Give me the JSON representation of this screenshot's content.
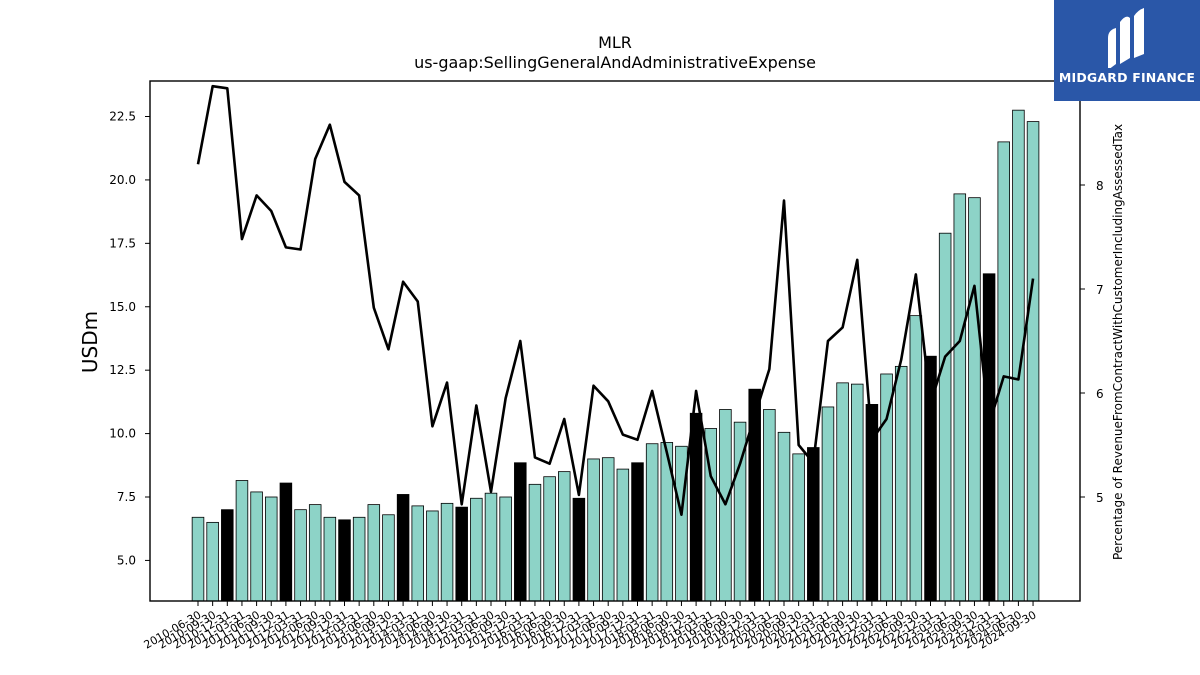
{
  "chart_data": {
    "type": "bar",
    "title": "MLR",
    "subtitle": "us-gaap:SellingGeneralAndAdministrativeExpense",
    "ylabel": "USDm",
    "y2label": "Percentage of RevenueFromContractWithCustomerIncludingAssessedTax",
    "ylim": [
      3.4,
      23.9
    ],
    "y2lim": [
      4.0,
      9.0
    ],
    "yticks": [
      5.0,
      7.5,
      10.0,
      12.5,
      15.0,
      17.5,
      20.0,
      22.5
    ],
    "y2ticks": [
      5,
      6,
      7,
      8
    ],
    "categories": [
      "2010-06-30",
      "2010-09-30",
      "2010-12-31",
      "2011-03-31",
      "2011-06-30",
      "2011-09-30",
      "2011-12-31",
      "2012-03-31",
      "2012-06-30",
      "2012-09-30",
      "2012-12-31",
      "2013-03-31",
      "2013-06-30",
      "2013-09-30",
      "2013-12-31",
      "2014-03-31",
      "2014-06-30",
      "2014-09-30",
      "2014-12-31",
      "2015-03-31",
      "2015-06-30",
      "2015-09-30",
      "2015-12-31",
      "2016-03-31",
      "2016-06-30",
      "2016-09-30",
      "2016-12-31",
      "2017-03-31",
      "2017-06-30",
      "2017-09-30",
      "2017-12-31",
      "2018-03-31",
      "2018-06-30",
      "2018-09-30",
      "2018-12-31",
      "2019-03-31",
      "2019-06-30",
      "2019-09-30",
      "2019-12-31",
      "2020-03-31",
      "2020-06-30",
      "2020-09-30",
      "2020-12-31",
      "2021-03-31",
      "2021-06-30",
      "2021-09-30",
      "2021-12-31",
      "2022-03-31",
      "2022-06-30",
      "2022-09-30",
      "2022-12-31",
      "2023-03-31",
      "2023-06-30",
      "2023-09-30",
      "2023-12-31",
      "2024-03-31",
      "2024-06-30",
      "2024-09-30"
    ],
    "series": [
      {
        "type": "bar",
        "values": [
          6.7,
          6.5,
          7.0,
          8.15,
          7.7,
          7.5,
          8.05,
          7.0,
          7.2,
          6.7,
          6.6,
          6.7,
          7.2,
          6.8,
          7.6,
          7.15,
          6.95,
          7.25,
          7.1,
          7.45,
          7.65,
          7.5,
          8.85,
          8.0,
          8.3,
          8.5,
          7.45,
          9.0,
          9.05,
          8.6,
          8.85,
          9.6,
          9.65,
          9.5,
          10.8,
          10.2,
          10.95,
          10.45,
          11.75,
          10.95,
          10.05,
          9.2,
          9.45,
          11.05,
          12.0,
          11.95,
          11.15,
          12.35,
          12.65,
          14.65,
          13.05,
          17.9,
          19.45,
          19.3,
          16.3,
          21.5,
          22.75,
          22.3
        ]
      },
      {
        "type": "line",
        "axis": "right",
        "values": [
          8.2,
          8.95,
          8.93,
          7.48,
          7.9,
          7.75,
          7.4,
          7.38,
          8.25,
          8.58,
          8.03,
          7.9,
          6.82,
          6.42,
          7.07,
          6.88,
          5.68,
          6.1,
          4.93,
          5.88,
          5.05,
          5.95,
          6.5,
          5.38,
          5.32,
          5.75,
          5.02,
          6.07,
          5.92,
          5.6,
          5.55,
          6.02,
          5.43,
          4.83,
          6.02,
          5.2,
          4.93,
          5.32,
          5.78,
          6.23,
          7.85,
          5.5,
          5.33,
          6.5,
          6.63,
          7.28,
          5.55,
          5.75,
          6.32,
          7.14,
          5.9,
          6.35,
          6.5,
          7.03,
          5.7,
          6.16,
          6.13,
          7.1
        ]
      }
    ],
    "highlight_color": "#000000",
    "bar_color": "#8dd3c7",
    "line_color": "#000000",
    "legend": "none",
    "grid": false
  },
  "logo": {
    "text": "MIDGARD FINANCE",
    "background": "#2a57a8"
  }
}
